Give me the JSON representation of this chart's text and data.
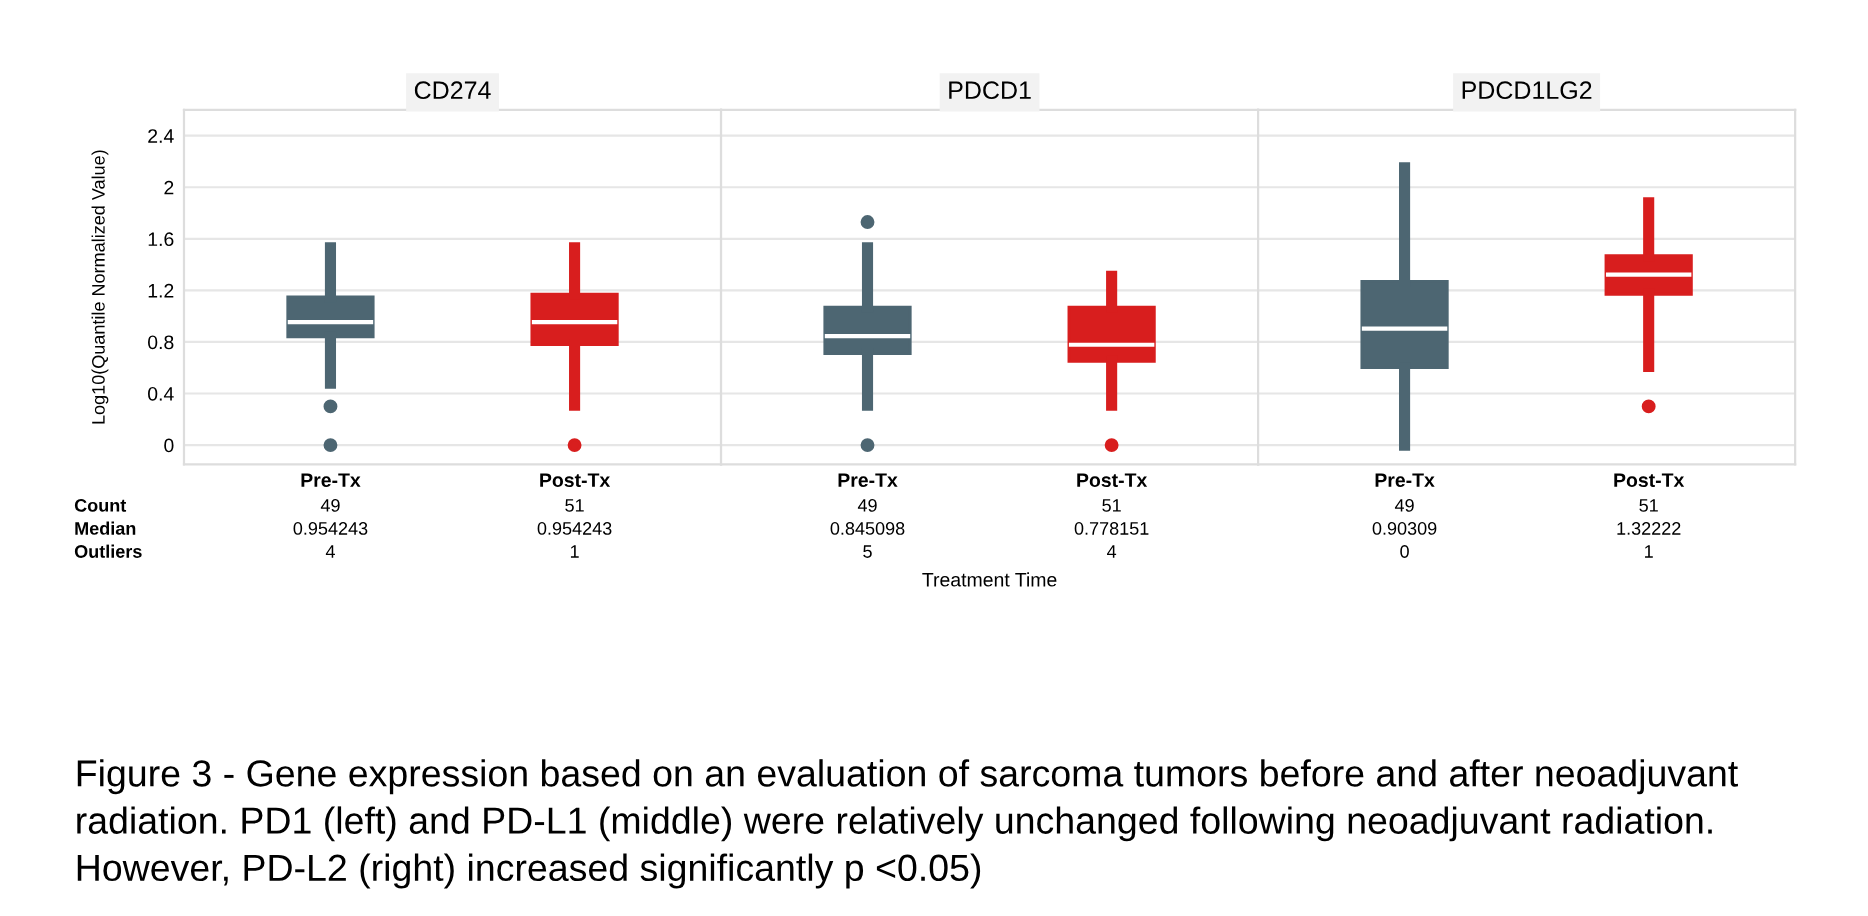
{
  "chart_data": [
    {
      "type": "box",
      "title": "CD274",
      "ylabel": "Log10(Quantile Normalized Value)",
      "categories": [
        "Pre-Tx",
        "Post-Tx"
      ],
      "colors": [
        "#4d6672",
        "#d81e1e"
      ],
      "boxes": [
        {
          "low": 0.48,
          "q1": 0.84,
          "median": 0.954243,
          "q3": 1.15,
          "high": 1.53,
          "outliers": [
            0.3,
            0.0
          ]
        },
        {
          "low": 0.31,
          "q1": 0.78,
          "median": 0.954243,
          "q3": 1.17,
          "high": 1.53,
          "outliers": [
            0.0
          ]
        }
      ],
      "ylim": [
        -0.15,
        2.6
      ],
      "yticks": [
        0,
        0.4,
        0.8,
        1.2,
        1.6,
        2,
        2.4
      ],
      "grid": "y",
      "annotations": [
        "Count",
        "Median",
        "Outliers",
        "49",
        "51",
        "0.954243",
        "0.954243",
        "4",
        "1",
        "Figure 3 - Gene expression based on an evaluation of sarcoma tumors before and after neoadjuvant radiation. PD1 (left) and PD-L1 (middle) were relatively unchanged following neoadjuvant radiation. However, PD-L2 (right) increased significantly p <0.05)"
      ]
    },
    {
      "type": "box",
      "title": "PDCD1",
      "xlabel": "Treatment Time",
      "categories": [
        "Pre-Tx",
        "Post-Tx"
      ],
      "colors": [
        "#4d6672",
        "#d81e1e"
      ],
      "boxes": [
        {
          "low": 0.31,
          "q1": 0.71,
          "median": 0.845098,
          "q3": 1.07,
          "high": 1.53,
          "outliers": [
            1.73,
            0.0
          ]
        },
        {
          "low": 0.31,
          "q1": 0.65,
          "median": 0.778151,
          "q3": 1.07,
          "high": 1.31,
          "outliers": [
            0.0
          ]
        }
      ],
      "ylim": [
        -0.15,
        2.6
      ],
      "yticks": [
        0,
        0.4,
        0.8,
        1.2,
        1.6,
        2,
        2.4
      ],
      "grid": "y",
      "tick_labels": "x",
      "annotations": [
        "49",
        "51",
        "0.845098",
        "0.778151",
        "5",
        "4"
      ]
    },
    {
      "type": "box",
      "title": "PDCD1LG2",
      "categories": [
        "Pre-Tx",
        "Post-Tx"
      ],
      "colors": [
        "#4d6672",
        "#d81e1e"
      ],
      "boxes": [
        {
          "low": 0.0,
          "q1": 0.6,
          "median": 0.90309,
          "q3": 1.27,
          "high": 2.15
        },
        {
          "low": 0.61,
          "q1": 1.17,
          "median": 1.32222,
          "q3": 1.47,
          "high": 1.88,
          "outliers": [
            0.3
          ]
        }
      ],
      "ylim": [
        -0.15,
        2.6
      ],
      "yticks": [
        0,
        0.4,
        0.8,
        1.2,
        1.6,
        2,
        2.4
      ],
      "grid": "y",
      "tick_labels": "x",
      "annotations": [
        "49",
        "51",
        "0.90309",
        "1.32222",
        "0",
        "1"
      ]
    }
  ]
}
